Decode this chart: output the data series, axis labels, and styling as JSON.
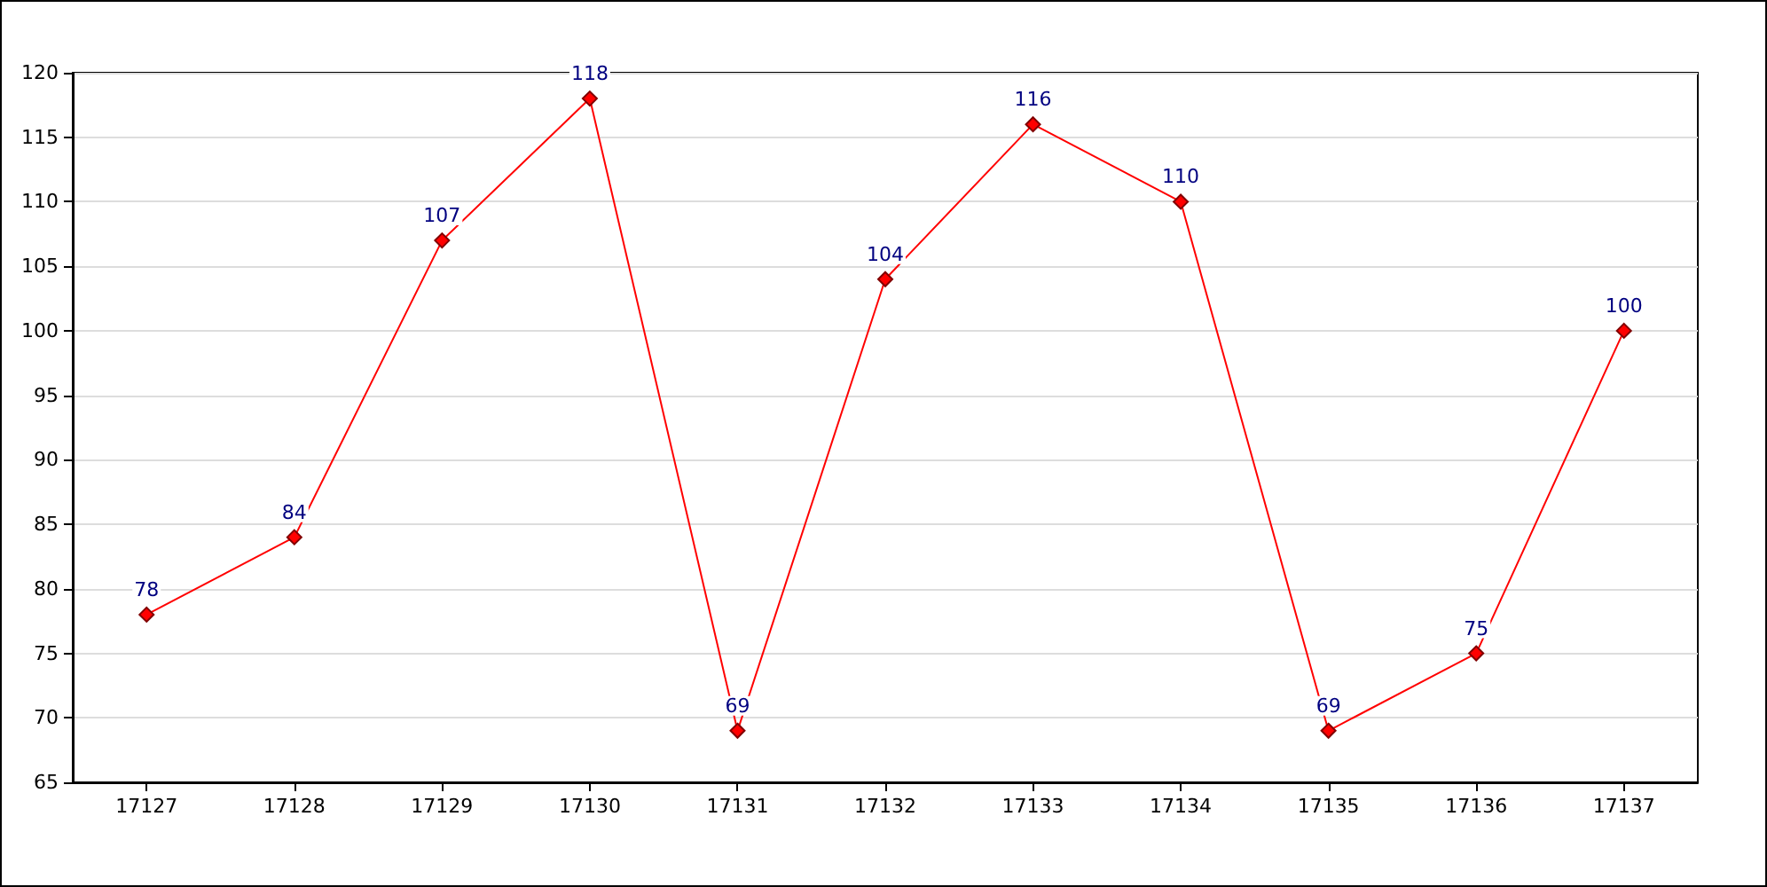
{
  "chart_data": {
    "type": "line",
    "categories": [
      "17127",
      "17128",
      "17129",
      "17130",
      "17131",
      "17132",
      "17133",
      "17134",
      "17135",
      "17136",
      "17137"
    ],
    "series": [
      {
        "color": "#ff0000",
        "values": [
          78,
          84,
          107,
          118,
          69,
          104,
          116,
          110,
          69,
          75,
          100
        ]
      }
    ],
    "ylim": [
      65,
      120
    ],
    "yticks": [
      65,
      70,
      75,
      80,
      85,
      90,
      95,
      100,
      105,
      110,
      115,
      120
    ],
    "grid": "y",
    "marker": "diamond",
    "line_style": "solid",
    "data_labels": true
  }
}
